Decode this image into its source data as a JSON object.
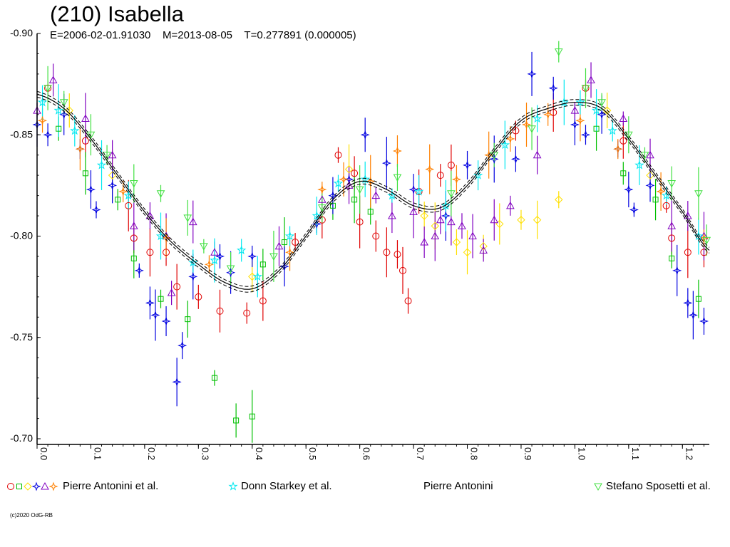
{
  "title": "(210) Isabella",
  "subtitle": "E=2006-02-01.91030    M=2013-08-05    T=0.277891 (0.000005)",
  "copyright": "(c)2020 OdG-RB",
  "colors": {
    "red": "#e00000",
    "green": "#00c000",
    "yellow": "#ffe000",
    "blue": "#0000e0",
    "purple": "#8000c0",
    "orange": "#ff8000",
    "cyan": "#00e8f0",
    "lime": "#40e040",
    "fit": "#000000"
  },
  "legend": [
    {
      "label": "Pierre Antonini et al.",
      "markers": [
        "circle",
        "square",
        "diamond",
        "star4",
        "triangle-up",
        "star4-orange"
      ]
    },
    {
      "label": "Donn Starkey et al.",
      "markers": [
        "star5"
      ]
    },
    {
      "label": "Pierre Antonini",
      "markers": []
    },
    {
      "label": "Stefano Sposetti et al.",
      "markers": [
        "triangle-down"
      ]
    }
  ],
  "chart_data": {
    "type": "scatter",
    "xlim": [
      0.0,
      1.25
    ],
    "ylim": [
      -0.9,
      -0.7
    ],
    "y_inverted": true,
    "xticks": [
      0.0,
      0.1,
      0.2,
      0.3,
      0.4,
      0.5,
      0.6,
      0.7,
      0.8,
      0.9,
      1.0,
      1.1,
      1.2
    ],
    "xtick_labels": [
      "0.0",
      "0.1",
      "0.2",
      "0.3",
      "0.4",
      "0.5",
      "0.6",
      "0.7",
      "0.8",
      "0.9",
      "1.0",
      "1.1",
      "1.2"
    ],
    "yticks": [
      -0.9,
      -0.85,
      -0.8,
      -0.75,
      -0.7
    ],
    "ytick_labels": [
      "-0.90",
      "-0.85",
      "-0.80",
      "-0.75",
      "-0.70"
    ],
    "grid": false,
    "legend_position": "bottom",
    "fit_curve": {
      "phase": [
        0.0,
        0.05,
        0.1,
        0.15,
        0.2,
        0.25,
        0.3,
        0.35,
        0.4,
        0.45,
        0.5,
        0.55,
        0.6,
        0.65,
        0.7,
        0.75,
        0.8,
        0.85,
        0.9,
        0.95,
        1.0,
        1.05,
        1.1,
        1.15,
        1.2,
        1.25
      ],
      "mag": [
        -0.87,
        -0.863,
        -0.848,
        -0.83,
        -0.812,
        -0.797,
        -0.786,
        -0.777,
        -0.774,
        -0.783,
        -0.8,
        -0.818,
        -0.827,
        -0.823,
        -0.815,
        -0.814,
        -0.825,
        -0.842,
        -0.857,
        -0.863,
        -0.866,
        -0.863,
        -0.848,
        -0.83,
        -0.812,
        -0.793
      ]
    },
    "series": [
      {
        "name": "Pierre Antonini et al.",
        "marker": "circle",
        "color": "#e00000",
        "points": [
          [
            0.02,
            -0.873
          ],
          [
            0.09,
            -0.847
          ],
          [
            0.17,
            -0.815
          ],
          [
            0.18,
            -0.799
          ],
          [
            0.21,
            -0.792
          ],
          [
            0.24,
            -0.792
          ],
          [
            0.26,
            -0.775
          ],
          [
            0.3,
            -0.77
          ],
          [
            0.34,
            -0.763
          ],
          [
            0.39,
            -0.762
          ],
          [
            0.42,
            -0.768
          ],
          [
            0.48,
            -0.797
          ],
          [
            0.53,
            -0.808
          ],
          [
            0.56,
            -0.84
          ],
          [
            0.59,
            -0.831
          ],
          [
            0.6,
            -0.807
          ],
          [
            0.63,
            -0.8
          ],
          [
            0.65,
            -0.792
          ],
          [
            0.67,
            -0.791
          ],
          [
            0.68,
            -0.783
          ],
          [
            0.69,
            -0.768
          ],
          [
            0.71,
            -0.822
          ],
          [
            0.75,
            -0.83
          ],
          [
            0.77,
            -0.835
          ],
          [
            0.89,
            -0.852
          ],
          [
            0.96,
            -0.861
          ],
          [
            1.02,
            -0.873
          ],
          [
            1.09,
            -0.847
          ],
          [
            1.17,
            -0.815
          ],
          [
            1.18,
            -0.799
          ],
          [
            1.21,
            -0.792
          ],
          [
            1.24,
            -0.792
          ]
        ]
      },
      {
        "name": "Pierre Antonini et al.",
        "marker": "square",
        "color": "#00c000",
        "points": [
          [
            0.04,
            -0.853
          ],
          [
            0.09,
            -0.831
          ],
          [
            0.15,
            -0.818
          ],
          [
            0.18,
            -0.789
          ],
          [
            0.23,
            -0.769
          ],
          [
            0.28,
            -0.759
          ],
          [
            0.33,
            -0.73
          ],
          [
            0.37,
            -0.709
          ],
          [
            0.4,
            -0.711
          ],
          [
            0.42,
            -0.786
          ],
          [
            0.46,
            -0.797
          ],
          [
            0.55,
            -0.815
          ],
          [
            0.59,
            -0.818
          ],
          [
            0.62,
            -0.812
          ],
          [
            1.04,
            -0.853
          ],
          [
            1.09,
            -0.831
          ],
          [
            1.15,
            -0.818
          ],
          [
            1.18,
            -0.789
          ],
          [
            1.23,
            -0.769
          ]
        ]
      },
      {
        "name": "Pierre Antonini et al.",
        "marker": "diamond",
        "color": "#ffe000",
        "points": [
          [
            0.06,
            -0.862
          ],
          [
            0.14,
            -0.83
          ],
          [
            0.4,
            -0.78
          ],
          [
            0.58,
            -0.833
          ],
          [
            0.72,
            -0.81
          ],
          [
            0.74,
            -0.805
          ],
          [
            0.78,
            -0.797
          ],
          [
            0.8,
            -0.792
          ],
          [
            0.83,
            -0.795
          ],
          [
            0.86,
            -0.806
          ],
          [
            0.9,
            -0.808
          ],
          [
            0.93,
            -0.808
          ],
          [
            0.97,
            -0.818
          ],
          [
            1.06,
            -0.862
          ],
          [
            1.14,
            -0.83
          ]
        ]
      },
      {
        "name": "Pierre Antonini et al.",
        "marker": "star4",
        "color": "#0000e0",
        "points": [
          [
            0.0,
            -0.855
          ],
          [
            0.02,
            -0.85
          ],
          [
            0.05,
            -0.86
          ],
          [
            0.08,
            -0.843
          ],
          [
            0.1,
            -0.823
          ],
          [
            0.11,
            -0.813
          ],
          [
            0.14,
            -0.825
          ],
          [
            0.19,
            -0.783
          ],
          [
            0.21,
            -0.767
          ],
          [
            0.22,
            -0.761
          ],
          [
            0.24,
            -0.758
          ],
          [
            0.26,
            -0.728
          ],
          [
            0.27,
            -0.746
          ],
          [
            0.29,
            -0.78
          ],
          [
            0.34,
            -0.79
          ],
          [
            0.36,
            -0.782
          ],
          [
            0.4,
            -0.79
          ],
          [
            0.46,
            -0.785
          ],
          [
            0.52,
            -0.806
          ],
          [
            0.55,
            -0.82
          ],
          [
            0.58,
            -0.828
          ],
          [
            0.61,
            -0.85
          ],
          [
            0.65,
            -0.836
          ],
          [
            0.7,
            -0.823
          ],
          [
            0.76,
            -0.81
          ],
          [
            0.8,
            -0.835
          ],
          [
            0.85,
            -0.838
          ],
          [
            0.89,
            -0.838
          ],
          [
            0.92,
            -0.88
          ],
          [
            0.96,
            -0.873
          ],
          [
            1.0,
            -0.855
          ],
          [
            1.02,
            -0.85
          ],
          [
            1.05,
            -0.86
          ],
          [
            1.08,
            -0.843
          ],
          [
            1.1,
            -0.823
          ],
          [
            1.11,
            -0.813
          ],
          [
            1.14,
            -0.825
          ],
          [
            1.19,
            -0.783
          ],
          [
            1.21,
            -0.767
          ],
          [
            1.22,
            -0.761
          ],
          [
            1.24,
            -0.758
          ]
        ]
      },
      {
        "name": "Pierre Antonini et al.",
        "marker": "triangle-up",
        "color": "#8000c0",
        "points": [
          [
            0.0,
            -0.862
          ],
          [
            0.03,
            -0.877
          ],
          [
            0.09,
            -0.858
          ],
          [
            0.14,
            -0.84
          ],
          [
            0.18,
            -0.805
          ],
          [
            0.21,
            -0.81
          ],
          [
            0.24,
            -0.8
          ],
          [
            0.25,
            -0.772
          ],
          [
            0.29,
            -0.807
          ],
          [
            0.33,
            -0.792
          ],
          [
            0.45,
            -0.795
          ],
          [
            0.53,
            -0.818
          ],
          [
            0.58,
            -0.825
          ],
          [
            0.63,
            -0.82
          ],
          [
            0.66,
            -0.81
          ],
          [
            0.7,
            -0.812
          ],
          [
            0.72,
            -0.797
          ],
          [
            0.74,
            -0.8
          ],
          [
            0.75,
            -0.808
          ],
          [
            0.77,
            -0.807
          ],
          [
            0.79,
            -0.805
          ],
          [
            0.81,
            -0.8
          ],
          [
            0.83,
            -0.793
          ],
          [
            0.85,
            -0.808
          ],
          [
            0.88,
            -0.815
          ],
          [
            0.93,
            -0.84
          ],
          [
            1.0,
            -0.862
          ],
          [
            1.03,
            -0.877
          ],
          [
            1.09,
            -0.858
          ],
          [
            1.14,
            -0.84
          ],
          [
            1.18,
            -0.805
          ],
          [
            1.21,
            -0.81
          ],
          [
            1.24,
            -0.8
          ]
        ]
      },
      {
        "name": "Pierre Antonini et al.",
        "marker": "star4-orange",
        "color": "#ff8000",
        "points": [
          [
            0.01,
            -0.857
          ],
          [
            0.08,
            -0.843
          ],
          [
            0.16,
            -0.822
          ],
          [
            0.24,
            -0.799
          ],
          [
            0.32,
            -0.786
          ],
          [
            0.47,
            -0.792
          ],
          [
            0.53,
            -0.823
          ],
          [
            0.57,
            -0.828
          ],
          [
            0.62,
            -0.827
          ],
          [
            0.67,
            -0.842
          ],
          [
            0.73,
            -0.833
          ],
          [
            0.78,
            -0.828
          ],
          [
            0.84,
            -0.84
          ],
          [
            0.88,
            -0.848
          ],
          [
            0.91,
            -0.855
          ],
          [
            0.95,
            -0.86
          ],
          [
            1.01,
            -0.857
          ],
          [
            1.08,
            -0.843
          ],
          [
            1.16,
            -0.822
          ],
          [
            1.24,
            -0.799
          ]
        ]
      },
      {
        "name": "Donn Starkey et al.",
        "marker": "star5",
        "color": "#00e8f0",
        "points": [
          [
            0.01,
            -0.866
          ],
          [
            0.04,
            -0.862
          ],
          [
            0.07,
            -0.852
          ],
          [
            0.12,
            -0.835
          ],
          [
            0.17,
            -0.82
          ],
          [
            0.23,
            -0.8
          ],
          [
            0.29,
            -0.787
          ],
          [
            0.33,
            -0.788
          ],
          [
            0.38,
            -0.793
          ],
          [
            0.41,
            -0.78
          ],
          [
            0.47,
            -0.8
          ],
          [
            0.52,
            -0.81
          ],
          [
            0.56,
            -0.826
          ],
          [
            0.61,
            -0.828
          ],
          [
            0.66,
            -0.82
          ],
          [
            0.71,
            -0.822
          ],
          [
            0.76,
            -0.815
          ],
          [
            0.82,
            -0.83
          ],
          [
            0.87,
            -0.845
          ],
          [
            0.93,
            -0.858
          ],
          [
            0.98,
            -0.866
          ],
          [
            1.01,
            -0.866
          ],
          [
            1.04,
            -0.862
          ],
          [
            1.07,
            -0.852
          ],
          [
            1.12,
            -0.835
          ],
          [
            1.17,
            -0.82
          ],
          [
            1.23,
            -0.8
          ]
        ]
      },
      {
        "name": "Stefano Sposetti et al.",
        "marker": "triangle-down",
        "color": "#40e040",
        "points": [
          [
            0.02,
            -0.873
          ],
          [
            0.05,
            -0.866
          ],
          [
            0.1,
            -0.85
          ],
          [
            0.13,
            -0.84
          ],
          [
            0.18,
            -0.826
          ],
          [
            0.23,
            -0.821
          ],
          [
            0.28,
            -0.809
          ],
          [
            0.31,
            -0.795
          ],
          [
            0.36,
            -0.784
          ],
          [
            0.44,
            -0.79
          ],
          [
            0.53,
            -0.814
          ],
          [
            0.6,
            -0.823
          ],
          [
            0.67,
            -0.829
          ],
          [
            0.77,
            -0.821
          ],
          [
            0.85,
            -0.84
          ],
          [
            0.92,
            -0.853
          ],
          [
            0.97,
            -0.891
          ],
          [
            1.02,
            -0.873
          ],
          [
            1.05,
            -0.866
          ],
          [
            1.1,
            -0.85
          ],
          [
            1.13,
            -0.84
          ],
          [
            1.18,
            -0.826
          ],
          [
            1.23,
            -0.821
          ],
          [
            1.245,
            -0.798
          ]
        ]
      }
    ]
  }
}
